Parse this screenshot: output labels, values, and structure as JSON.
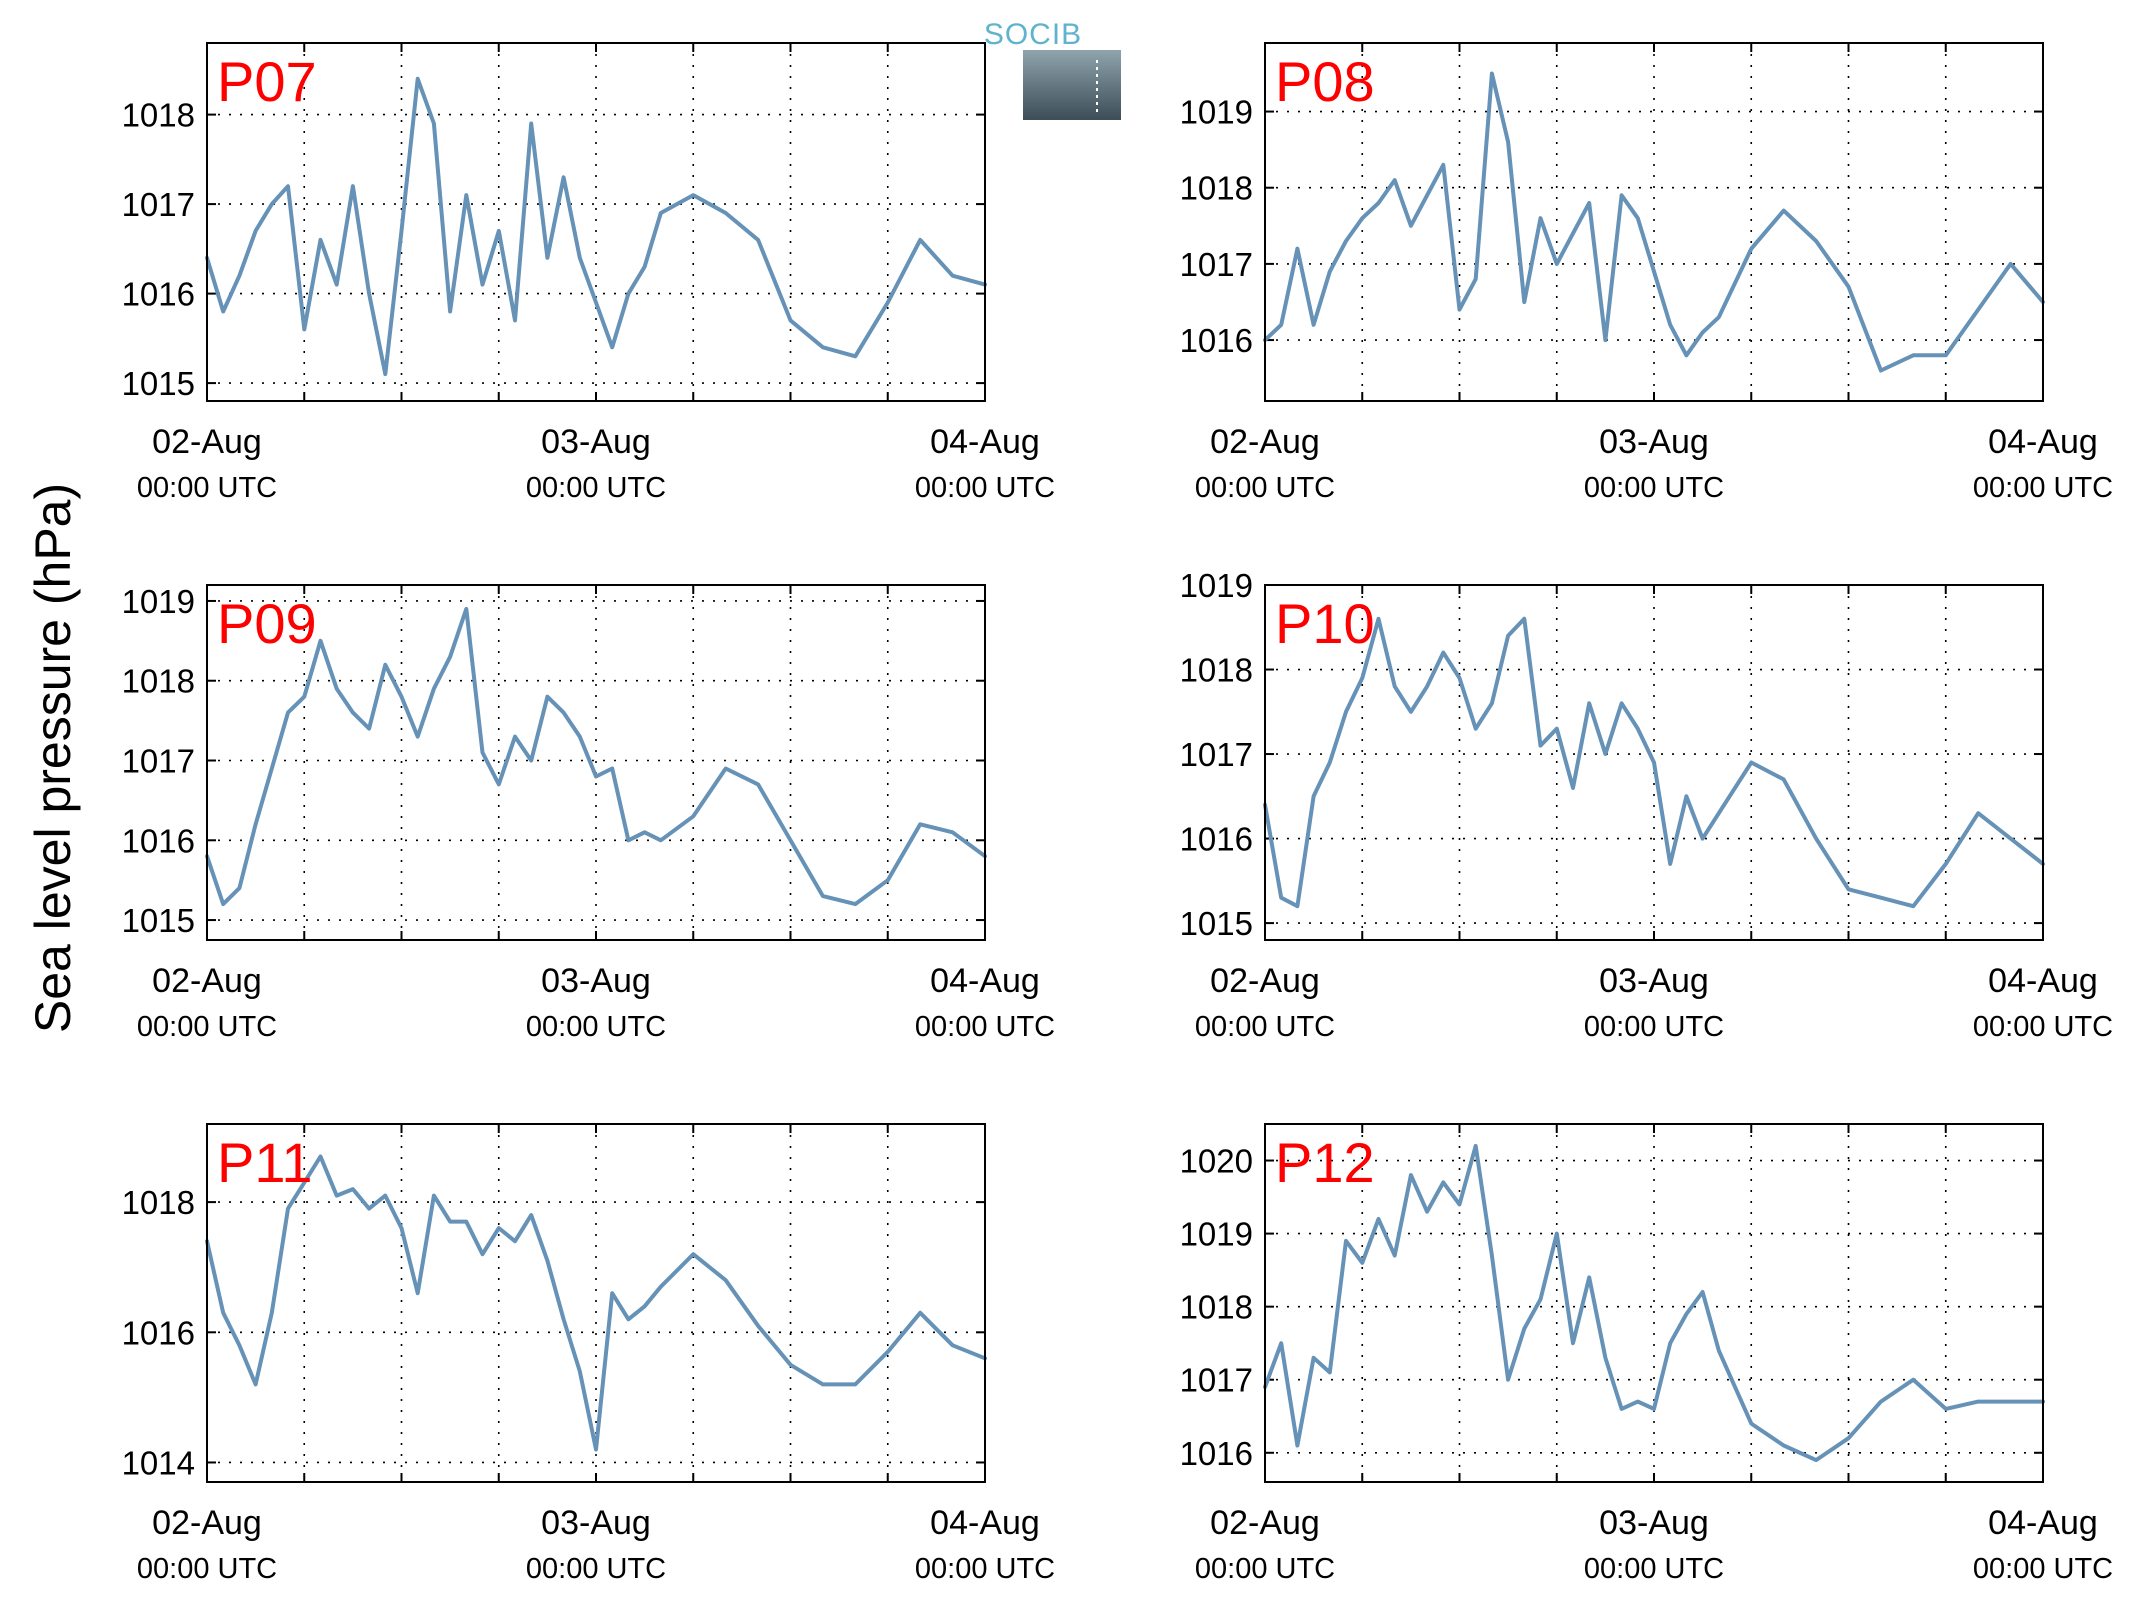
{
  "figure": {
    "ylabel": "Sea level pressure (hPa)",
    "logo_text": "SOCIB",
    "colors": {
      "series": "#6592b6",
      "panel_label": "#ff0000",
      "logo": "#5fb3cc"
    }
  },
  "chart_data": [
    {
      "type": "line",
      "panel": "P07",
      "xticks": [
        {
          "date": "02-Aug",
          "time": "00:00 UTC"
        },
        {
          "date": "03-Aug",
          "time": "00:00 UTC"
        },
        {
          "date": "04-Aug",
          "time": "00:00 UTC"
        }
      ],
      "xlim": [
        "2014-08-02 00:00",
        "2014-08-04 00:00"
      ],
      "ylim": [
        1014.8,
        1018.8
      ],
      "yticks": [
        1015,
        1016,
        1017,
        1018
      ],
      "grid": true,
      "series": [
        {
          "x": [
            "02-Aug 00:00",
            "02-Aug 01:00",
            "02-Aug 02:00",
            "02-Aug 03:00",
            "02-Aug 04:00",
            "02-Aug 05:00",
            "02-Aug 06:00",
            "02-Aug 07:00",
            "02-Aug 08:00",
            "02-Aug 09:00",
            "02-Aug 10:00",
            "02-Aug 11:00",
            "02-Aug 12:00",
            "02-Aug 13:00",
            "02-Aug 14:00",
            "02-Aug 15:00",
            "02-Aug 16:00",
            "02-Aug 17:00",
            "02-Aug 18:00",
            "02-Aug 19:00",
            "02-Aug 20:00",
            "02-Aug 21:00",
            "02-Aug 22:00",
            "02-Aug 23:00",
            "03-Aug 00:00",
            "03-Aug 01:00",
            "03-Aug 02:00",
            "03-Aug 03:00",
            "03-Aug 04:00",
            "03-Aug 06:00",
            "03-Aug 08:00",
            "03-Aug 10:00",
            "03-Aug 12:00",
            "03-Aug 14:00",
            "03-Aug 16:00",
            "03-Aug 18:00",
            "03-Aug 20:00",
            "03-Aug 22:00",
            "04-Aug 00:00"
          ],
          "values": [
            1016.4,
            1015.8,
            1016.2,
            1016.7,
            1017.0,
            1017.2,
            1015.6,
            1016.6,
            1016.1,
            1017.2,
            1016.0,
            1015.1,
            1016.7,
            1018.4,
            1017.9,
            1015.8,
            1017.1,
            1016.1,
            1016.7,
            1015.7,
            1017.9,
            1016.4,
            1017.3,
            1016.4,
            1015.9,
            1015.4,
            1016.0,
            1016.3,
            1016.9,
            1017.1,
            1016.9,
            1016.6,
            1015.7,
            1015.4,
            1015.3,
            1015.9,
            1016.6,
            1016.2,
            1016.1
          ]
        }
      ]
    },
    {
      "type": "line",
      "panel": "P08",
      "xticks": [
        {
          "date": "02-Aug",
          "time": "00:00 UTC"
        },
        {
          "date": "03-Aug",
          "time": "00:00 UTC"
        },
        {
          "date": "04-Aug",
          "time": "00:00 UTC"
        }
      ],
      "xlim": [
        "2014-08-02 00:00",
        "2014-08-04 00:00"
      ],
      "ylim": [
        1015.2,
        1019.9
      ],
      "yticks": [
        1016,
        1017,
        1018,
        1019
      ],
      "grid": true,
      "series": [
        {
          "x": [
            "02-Aug 00:00",
            "02-Aug 01:00",
            "02-Aug 02:00",
            "02-Aug 03:00",
            "02-Aug 04:00",
            "02-Aug 05:00",
            "02-Aug 06:00",
            "02-Aug 07:00",
            "02-Aug 08:00",
            "02-Aug 09:00",
            "02-Aug 10:00",
            "02-Aug 11:00",
            "02-Aug 12:00",
            "02-Aug 13:00",
            "02-Aug 14:00",
            "02-Aug 15:00",
            "02-Aug 16:00",
            "02-Aug 17:00",
            "02-Aug 18:00",
            "02-Aug 19:00",
            "02-Aug 20:00",
            "02-Aug 21:00",
            "02-Aug 22:00",
            "02-Aug 23:00",
            "03-Aug 00:00",
            "03-Aug 01:00",
            "03-Aug 02:00",
            "03-Aug 03:00",
            "03-Aug 04:00",
            "03-Aug 06:00",
            "03-Aug 08:00",
            "03-Aug 10:00",
            "03-Aug 12:00",
            "03-Aug 14:00",
            "03-Aug 16:00",
            "03-Aug 18:00",
            "03-Aug 20:00",
            "03-Aug 22:00",
            "04-Aug 00:00"
          ],
          "values": [
            1016.0,
            1016.2,
            1017.2,
            1016.2,
            1016.9,
            1017.3,
            1017.6,
            1017.8,
            1018.1,
            1017.5,
            1017.9,
            1018.3,
            1016.4,
            1016.8,
            1019.5,
            1018.6,
            1016.5,
            1017.6,
            1017.0,
            1017.4,
            1017.8,
            1016.0,
            1017.9,
            1017.6,
            1016.9,
            1016.2,
            1015.8,
            1016.1,
            1016.3,
            1017.2,
            1017.7,
            1017.3,
            1016.7,
            1015.6,
            1015.8,
            1015.8,
            1016.4,
            1017.0,
            1016.5
          ]
        }
      ]
    },
    {
      "type": "line",
      "panel": "P09",
      "xticks": [
        {
          "date": "02-Aug",
          "time": "00:00 UTC"
        },
        {
          "date": "03-Aug",
          "time": "00:00 UTC"
        },
        {
          "date": "04-Aug",
          "time": "00:00 UTC"
        }
      ],
      "xlim": [
        "2014-08-02 00:00",
        "2014-08-04 00:00"
      ],
      "ylim": [
        1014.75,
        1019.2
      ],
      "yticks": [
        1015,
        1016,
        1017,
        1018,
        1019
      ],
      "grid": true,
      "series": [
        {
          "x": [
            "02-Aug 00:00",
            "02-Aug 01:00",
            "02-Aug 02:00",
            "02-Aug 03:00",
            "02-Aug 04:00",
            "02-Aug 05:00",
            "02-Aug 06:00",
            "02-Aug 07:00",
            "02-Aug 08:00",
            "02-Aug 09:00",
            "02-Aug 10:00",
            "02-Aug 11:00",
            "02-Aug 12:00",
            "02-Aug 13:00",
            "02-Aug 14:00",
            "02-Aug 15:00",
            "02-Aug 16:00",
            "02-Aug 17:00",
            "02-Aug 18:00",
            "02-Aug 19:00",
            "02-Aug 20:00",
            "02-Aug 21:00",
            "02-Aug 22:00",
            "02-Aug 23:00",
            "03-Aug 00:00",
            "03-Aug 01:00",
            "03-Aug 02:00",
            "03-Aug 03:00",
            "03-Aug 04:00",
            "03-Aug 06:00",
            "03-Aug 08:00",
            "03-Aug 10:00",
            "03-Aug 12:00",
            "03-Aug 14:00",
            "03-Aug 16:00",
            "03-Aug 18:00",
            "03-Aug 20:00",
            "03-Aug 22:00",
            "04-Aug 00:00"
          ],
          "values": [
            1015.8,
            1015.2,
            1015.4,
            1016.2,
            1016.9,
            1017.6,
            1017.8,
            1018.5,
            1017.9,
            1017.6,
            1017.4,
            1018.2,
            1017.8,
            1017.3,
            1017.9,
            1018.3,
            1018.9,
            1017.1,
            1016.7,
            1017.3,
            1017.0,
            1017.8,
            1017.6,
            1017.3,
            1016.8,
            1016.9,
            1016.0,
            1016.1,
            1016.0,
            1016.3,
            1016.9,
            1016.7,
            1016.0,
            1015.3,
            1015.2,
            1015.5,
            1016.2,
            1016.1,
            1015.8
          ]
        }
      ]
    },
    {
      "type": "line",
      "panel": "P10",
      "xticks": [
        {
          "date": "02-Aug",
          "time": "00:00 UTC"
        },
        {
          "date": "03-Aug",
          "time": "00:00 UTC"
        },
        {
          "date": "04-Aug",
          "time": "00:00 UTC"
        }
      ],
      "xlim": [
        "2014-08-02 00:00",
        "2014-08-04 00:00"
      ],
      "ylim": [
        1014.8,
        1019.0
      ],
      "yticks": [
        1015,
        1016,
        1017,
        1018,
        1019
      ],
      "grid": true,
      "series": [
        {
          "x": [
            "02-Aug 00:00",
            "02-Aug 01:00",
            "02-Aug 02:00",
            "02-Aug 03:00",
            "02-Aug 04:00",
            "02-Aug 05:00",
            "02-Aug 06:00",
            "02-Aug 07:00",
            "02-Aug 08:00",
            "02-Aug 09:00",
            "02-Aug 10:00",
            "02-Aug 11:00",
            "02-Aug 12:00",
            "02-Aug 13:00",
            "02-Aug 14:00",
            "02-Aug 15:00",
            "02-Aug 16:00",
            "02-Aug 17:00",
            "02-Aug 18:00",
            "02-Aug 19:00",
            "02-Aug 20:00",
            "02-Aug 21:00",
            "02-Aug 22:00",
            "02-Aug 23:00",
            "03-Aug 00:00",
            "03-Aug 01:00",
            "03-Aug 02:00",
            "03-Aug 03:00",
            "03-Aug 04:00",
            "03-Aug 06:00",
            "03-Aug 08:00",
            "03-Aug 10:00",
            "03-Aug 12:00",
            "03-Aug 14:00",
            "03-Aug 16:00",
            "03-Aug 18:00",
            "03-Aug 20:00",
            "03-Aug 22:00",
            "04-Aug 00:00"
          ],
          "values": [
            1016.4,
            1015.3,
            1015.2,
            1016.5,
            1016.9,
            1017.5,
            1017.9,
            1018.6,
            1017.8,
            1017.5,
            1017.8,
            1018.2,
            1017.9,
            1017.3,
            1017.6,
            1018.4,
            1018.6,
            1017.1,
            1017.3,
            1016.6,
            1017.6,
            1017.0,
            1017.6,
            1017.3,
            1016.9,
            1015.7,
            1016.5,
            1016.0,
            1016.3,
            1016.9,
            1016.7,
            1016.0,
            1015.4,
            1015.3,
            1015.2,
            1015.7,
            1016.3,
            1016.0,
            1015.7
          ]
        }
      ]
    },
    {
      "type": "line",
      "panel": "P11",
      "xticks": [
        {
          "date": "02-Aug",
          "time": "00:00 UTC"
        },
        {
          "date": "03-Aug",
          "time": "00:00 UTC"
        },
        {
          "date": "04-Aug",
          "time": "00:00 UTC"
        }
      ],
      "xlim": [
        "2014-08-02 00:00",
        "2014-08-04 00:00"
      ],
      "ylim": [
        1013.7,
        1019.2
      ],
      "yticks": [
        1014,
        1016,
        1018
      ],
      "grid": true,
      "series": [
        {
          "x": [
            "02-Aug 00:00",
            "02-Aug 01:00",
            "02-Aug 02:00",
            "02-Aug 03:00",
            "02-Aug 04:00",
            "02-Aug 05:00",
            "02-Aug 06:00",
            "02-Aug 07:00",
            "02-Aug 08:00",
            "02-Aug 09:00",
            "02-Aug 10:00",
            "02-Aug 11:00",
            "02-Aug 12:00",
            "02-Aug 13:00",
            "02-Aug 14:00",
            "02-Aug 15:00",
            "02-Aug 16:00",
            "02-Aug 17:00",
            "02-Aug 18:00",
            "02-Aug 19:00",
            "02-Aug 20:00",
            "02-Aug 21:00",
            "02-Aug 22:00",
            "02-Aug 23:00",
            "03-Aug 00:00",
            "03-Aug 01:00",
            "03-Aug 02:00",
            "03-Aug 03:00",
            "03-Aug 04:00",
            "03-Aug 06:00",
            "03-Aug 08:00",
            "03-Aug 10:00",
            "03-Aug 12:00",
            "03-Aug 14:00",
            "03-Aug 16:00",
            "03-Aug 18:00",
            "03-Aug 20:00",
            "03-Aug 22:00",
            "04-Aug 00:00"
          ],
          "values": [
            1017.4,
            1016.3,
            1015.8,
            1015.2,
            1016.3,
            1017.9,
            1018.3,
            1018.7,
            1018.1,
            1018.2,
            1017.9,
            1018.1,
            1017.6,
            1016.6,
            1018.1,
            1017.7,
            1017.7,
            1017.2,
            1017.6,
            1017.4,
            1017.8,
            1017.1,
            1016.2,
            1015.4,
            1014.2,
            1016.6,
            1016.2,
            1016.4,
            1016.7,
            1017.2,
            1016.8,
            1016.1,
            1015.5,
            1015.2,
            1015.2,
            1015.7,
            1016.3,
            1015.8,
            1015.6
          ]
        }
      ]
    },
    {
      "type": "line",
      "panel": "P12",
      "xticks": [
        {
          "date": "02-Aug",
          "time": "00:00 UTC"
        },
        {
          "date": "03-Aug",
          "time": "00:00 UTC"
        },
        {
          "date": "04-Aug",
          "time": "00:00 UTC"
        }
      ],
      "xlim": [
        "2014-08-02 00:00",
        "2014-08-04 00:00"
      ],
      "ylim": [
        1015.6,
        1020.5
      ],
      "yticks": [
        1016,
        1017,
        1018,
        1019,
        1020
      ],
      "grid": true,
      "series": [
        {
          "x": [
            "02-Aug 00:00",
            "02-Aug 01:00",
            "02-Aug 02:00",
            "02-Aug 03:00",
            "02-Aug 04:00",
            "02-Aug 05:00",
            "02-Aug 06:00",
            "02-Aug 07:00",
            "02-Aug 08:00",
            "02-Aug 09:00",
            "02-Aug 10:00",
            "02-Aug 11:00",
            "02-Aug 12:00",
            "02-Aug 13:00",
            "02-Aug 14:00",
            "02-Aug 15:00",
            "02-Aug 16:00",
            "02-Aug 17:00",
            "02-Aug 18:00",
            "02-Aug 19:00",
            "02-Aug 20:00",
            "02-Aug 21:00",
            "02-Aug 22:00",
            "02-Aug 23:00",
            "03-Aug 00:00",
            "03-Aug 01:00",
            "03-Aug 02:00",
            "03-Aug 03:00",
            "03-Aug 04:00",
            "03-Aug 06:00",
            "03-Aug 08:00",
            "03-Aug 10:00",
            "03-Aug 12:00",
            "03-Aug 14:00",
            "03-Aug 16:00",
            "03-Aug 18:00",
            "03-Aug 20:00",
            "03-Aug 22:00",
            "04-Aug 00:00"
          ],
          "values": [
            1016.9,
            1017.5,
            1016.1,
            1017.3,
            1017.1,
            1018.9,
            1018.6,
            1019.2,
            1018.7,
            1019.8,
            1019.3,
            1019.7,
            1019.4,
            1020.2,
            1018.7,
            1017.0,
            1017.7,
            1018.1,
            1019.0,
            1017.5,
            1018.4,
            1017.3,
            1016.6,
            1016.7,
            1016.6,
            1017.5,
            1017.9,
            1018.2,
            1017.4,
            1016.4,
            1016.1,
            1015.9,
            1016.2,
            1016.7,
            1017.0,
            1016.6,
            1016.7,
            1016.7,
            1016.7
          ]
        }
      ]
    }
  ]
}
